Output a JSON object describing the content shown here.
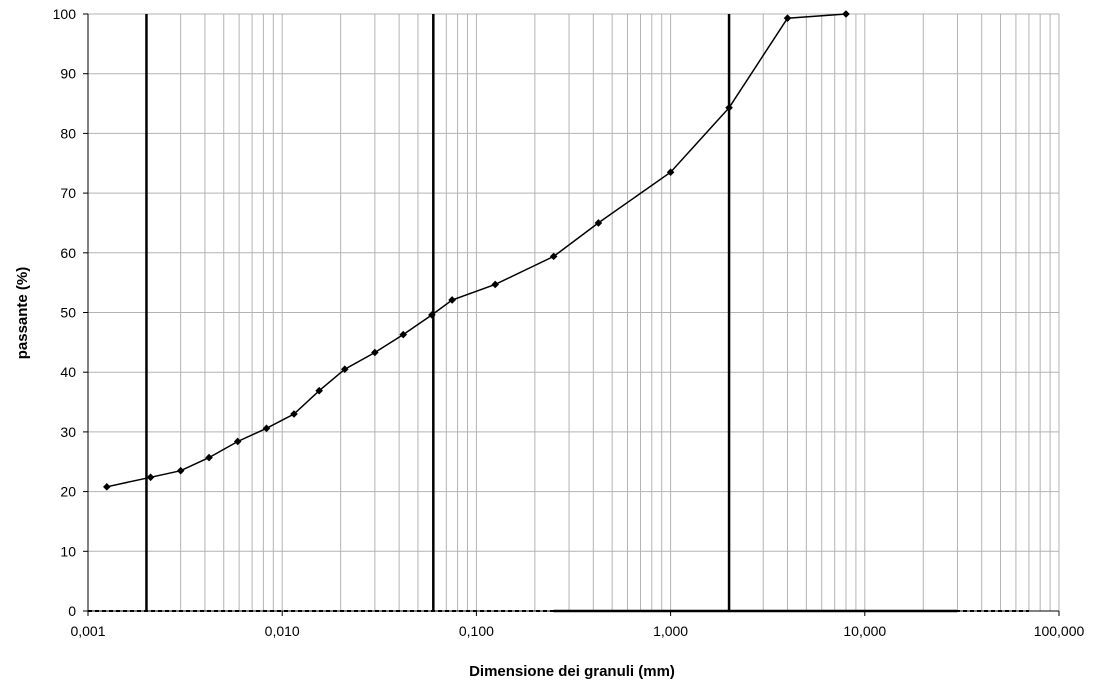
{
  "chart_data": {
    "type": "scatter",
    "title": "",
    "xlabel": "Dimensione dei granuli (mm)",
    "ylabel": "passante (%)",
    "x_scale": "log",
    "xlim": [
      0.001,
      100
    ],
    "ylim": [
      0,
      100
    ],
    "grid": true,
    "legend": "none",
    "x_tick_labels": [
      "0,001",
      "0,010",
      "0,100",
      "1,000",
      "10,000",
      "100,000"
    ],
    "x_ticks": [
      0.001,
      0.01,
      0.1,
      1,
      10,
      100
    ],
    "y_ticks": [
      0,
      10,
      20,
      30,
      40,
      50,
      60,
      70,
      80,
      90,
      100
    ],
    "series": [
      {
        "x": [
          0.00125,
          0.0021,
          0.003,
          0.0042,
          0.0059,
          0.0083,
          0.0115,
          0.0155,
          0.021,
          0.03,
          0.042,
          0.059,
          0.075,
          0.125,
          0.25,
          0.425,
          1.0,
          2.0,
          4.0,
          8.0
        ],
        "y": [
          20.8,
          22.4,
          23.5,
          25.7,
          28.4,
          30.6,
          33.0,
          36.9,
          40.5,
          43.3,
          46.3,
          49.6,
          52.1,
          54.7,
          59.4,
          65.0,
          73.5,
          84.3,
          99.3,
          100.0
        ]
      }
    ],
    "reference_lines_x": [
      0.002,
      0.06,
      2.0
    ],
    "baseline_dashed_x": [
      0.001,
      70
    ],
    "baseline_solid_x": [
      0.25,
      30
    ],
    "colors": {
      "grid": "#b3b3b3",
      "line": "#000000",
      "axis": "#000000"
    }
  }
}
